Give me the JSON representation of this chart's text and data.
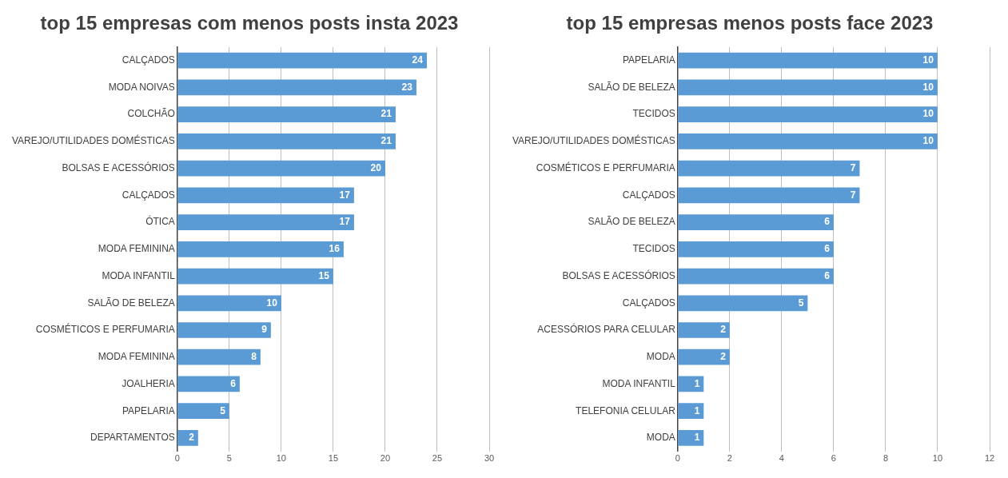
{
  "chart_data": [
    {
      "type": "bar",
      "orientation": "horizontal",
      "title": "top 15 empresas com menos posts insta 2023",
      "categories": [
        "CALÇADOS",
        "MODA NOIVAS",
        "COLCHÃO",
        "VAREJO/UTILIDADES DOMÉSTICAS",
        "BOLSAS E ACESSÓRIOS",
        "CALÇADOS",
        "ÓTICA",
        "MODA FEMININA",
        "MODA INFANTIL",
        "SALÃO DE BELEZA",
        "COSMÉTICOS E PERFUMARIA",
        "MODA FEMININA",
        "JOALHERIA",
        "PAPELARIA",
        "DEPARTAMENTOS"
      ],
      "values": [
        24,
        23,
        21,
        21,
        20,
        17,
        17,
        16,
        15,
        10,
        9,
        8,
        6,
        5,
        2
      ],
      "color": "#5b9bd5",
      "xlim": [
        0,
        30
      ],
      "xticks": [
        0,
        5,
        10,
        15,
        20,
        25,
        30
      ],
      "grid": "x",
      "data_labels": true,
      "legend": false
    },
    {
      "type": "bar",
      "orientation": "horizontal",
      "title": "top 15 empresas menos posts face 2023",
      "categories": [
        "PAPELARIA",
        "SALÃO DE BELEZA",
        "TECIDOS",
        "VAREJO/UTILIDADES DOMÉSTICAS",
        "COSMÉTICOS E PERFUMARIA",
        "CALÇADOS",
        "SALÃO DE BELEZA",
        "TECIDOS",
        "BOLSAS E ACESSÓRIOS",
        "CALÇADOS",
        "ACESSÓRIOS PARA CELULAR",
        "MODA",
        "MODA INFANTIL",
        "TELEFONIA CELULAR",
        "MODA"
      ],
      "values": [
        10,
        10,
        10,
        10,
        7,
        7,
        6,
        6,
        6,
        5,
        2,
        2,
        1,
        1,
        1
      ],
      "color": "#5b9bd5",
      "xlim": [
        0,
        12
      ],
      "xticks": [
        0,
        2,
        4,
        6,
        8,
        10,
        12
      ],
      "grid": "x",
      "data_labels": true,
      "legend": false
    }
  ]
}
